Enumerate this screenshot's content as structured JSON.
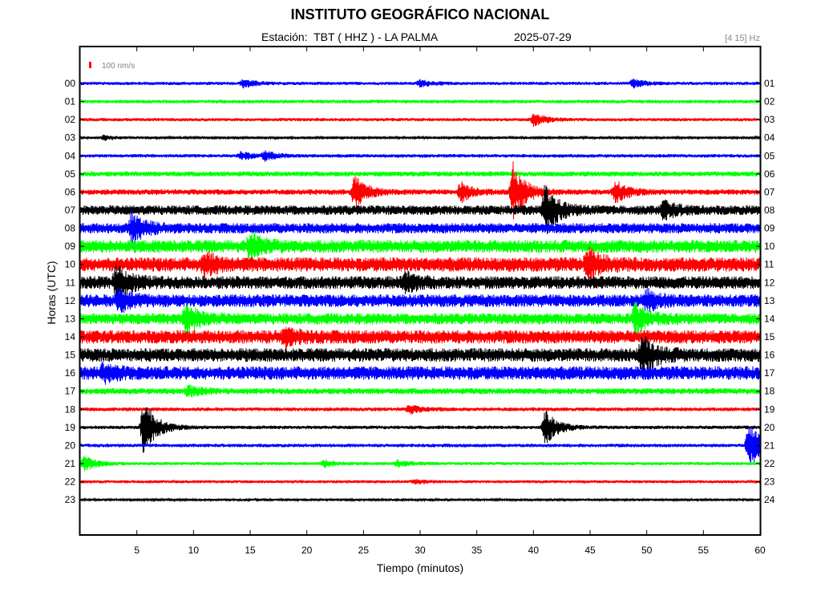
{
  "header": {
    "title": "INSTITUTO GEOGRÁFICO NACIONAL",
    "station": "Estación:  TBT ( HHZ ) - LA PALMA",
    "date": "2025-07-29",
    "band": "[4 15] Hz"
  },
  "chart_data": {
    "type": "line",
    "title": "INSTITUTO GEOGRÁFICO NACIONAL",
    "xlabel": "Tiempo (minutos)",
    "ylabel": "Horas (UTC)",
    "xlim": [
      0,
      60
    ],
    "x_ticks": [
      5,
      10,
      15,
      20,
      25,
      30,
      35,
      40,
      45,
      50,
      55,
      60
    ],
    "y_ticks_left": [
      "00",
      "01",
      "02",
      "03",
      "04",
      "05",
      "06",
      "07",
      "08",
      "09",
      "10",
      "11",
      "12",
      "13",
      "14",
      "15",
      "16",
      "17",
      "18",
      "19",
      "20",
      "21",
      "22",
      "23"
    ],
    "y_ticks_right": [
      "01",
      "02",
      "03",
      "04",
      "05",
      "06",
      "07",
      "08",
      "09",
      "10",
      "11",
      "12",
      "13",
      "14",
      "15",
      "16",
      "17",
      "18",
      "19",
      "20",
      "21",
      "22",
      "23",
      "24"
    ],
    "scale_label": "100 nm/s",
    "colors": [
      "#0000ff",
      "#00ff00",
      "#ff0000",
      "#000000"
    ],
    "grid": false,
    "series": [
      {
        "hour": "00",
        "color": "#0000ff",
        "noise": 2.0,
        "events": [
          {
            "t": 14.4,
            "amp": 5
          },
          {
            "t": 30.0,
            "amp": 4
          },
          {
            "t": 48.8,
            "amp": 5
          }
        ]
      },
      {
        "hour": "01",
        "color": "#00ff00",
        "noise": 2.2,
        "events": []
      },
      {
        "hour": "02",
        "color": "#ff0000",
        "noise": 2.0,
        "events": [
          {
            "t": 40.0,
            "amp": 8
          }
        ]
      },
      {
        "hour": "03",
        "color": "#000000",
        "noise": 1.3,
        "events": [
          {
            "t": 2.1,
            "amp": 3
          }
        ]
      },
      {
        "hour": "04",
        "color": "#0000ff",
        "noise": 2.2,
        "events": [
          {
            "t": 14.2,
            "amp": 5
          },
          {
            "t": 16.3,
            "amp": 5
          }
        ]
      },
      {
        "hour": "05",
        "color": "#00ff00",
        "noise": 3.2,
        "events": []
      },
      {
        "hour": "06",
        "color": "#ff0000",
        "noise": 3.4,
        "events": [
          {
            "t": 24.2,
            "amp": 20
          },
          {
            "t": 33.6,
            "amp": 12
          },
          {
            "t": 38.2,
            "amp": 36
          },
          {
            "t": 47.2,
            "amp": 14
          }
        ]
      },
      {
        "hour": "07",
        "color": "#000000",
        "noise": 6.0,
        "events": [
          {
            "t": 41.0,
            "amp": 30
          },
          {
            "t": 51.5,
            "amp": 10
          }
        ]
      },
      {
        "hour": "08",
        "color": "#0000ff",
        "noise": 6.5,
        "events": [
          {
            "t": 4.6,
            "amp": 18
          }
        ]
      },
      {
        "hour": "09",
        "color": "#00ff00",
        "noise": 8.0,
        "events": [
          {
            "t": 15.0,
            "amp": 14
          }
        ]
      },
      {
        "hour": "10",
        "color": "#ff0000",
        "noise": 9.0,
        "events": [
          {
            "t": 11.0,
            "amp": 12
          },
          {
            "t": 44.8,
            "amp": 18
          }
        ]
      },
      {
        "hour": "11",
        "color": "#000000",
        "noise": 8.0,
        "events": [
          {
            "t": 3.2,
            "amp": 20
          },
          {
            "t": 28.6,
            "amp": 10
          }
        ]
      },
      {
        "hour": "12",
        "color": "#0000ff",
        "noise": 8.0,
        "events": [
          {
            "t": 3.4,
            "amp": 12
          },
          {
            "t": 50.0,
            "amp": 10
          }
        ]
      },
      {
        "hour": "13",
        "color": "#00ff00",
        "noise": 7.0,
        "events": [
          {
            "t": 9.3,
            "amp": 18
          },
          {
            "t": 49.0,
            "amp": 16
          }
        ]
      },
      {
        "hour": "14",
        "color": "#ff0000",
        "noise": 8.5,
        "events": [
          {
            "t": 18.0,
            "amp": 8
          }
        ]
      },
      {
        "hour": "15",
        "color": "#000000",
        "noise": 8.5,
        "events": [
          {
            "t": 49.6,
            "amp": 22
          }
        ]
      },
      {
        "hour": "16",
        "color": "#0000ff",
        "noise": 8.5,
        "events": [
          {
            "t": 2.0,
            "amp": 8
          }
        ]
      },
      {
        "hour": "17",
        "color": "#00ff00",
        "noise": 3.8,
        "events": [
          {
            "t": 9.5,
            "amp": 6
          }
        ]
      },
      {
        "hour": "18",
        "color": "#ff0000",
        "noise": 2.4,
        "events": [
          {
            "t": 29.0,
            "amp": 5
          }
        ]
      },
      {
        "hour": "19",
        "color": "#000000",
        "noise": 2.2,
        "events": [
          {
            "t": 5.6,
            "amp": 38
          },
          {
            "t": 41.0,
            "amp": 22
          }
        ]
      },
      {
        "hour": "20",
        "color": "#0000ff",
        "noise": 2.2,
        "events": [
          {
            "t": 59.0,
            "amp": 30
          }
        ]
      },
      {
        "hour": "21",
        "color": "#00ff00",
        "noise": 2.0,
        "events": [
          {
            "t": 0.3,
            "amp": 10
          },
          {
            "t": 21.5,
            "amp": 4
          },
          {
            "t": 28.0,
            "amp": 4
          }
        ]
      },
      {
        "hour": "22",
        "color": "#ff0000",
        "noise": 1.8,
        "events": [
          {
            "t": 29.5,
            "amp": 3
          }
        ]
      },
      {
        "hour": "23",
        "color": "#000000",
        "noise": 1.5,
        "events": []
      }
    ]
  }
}
